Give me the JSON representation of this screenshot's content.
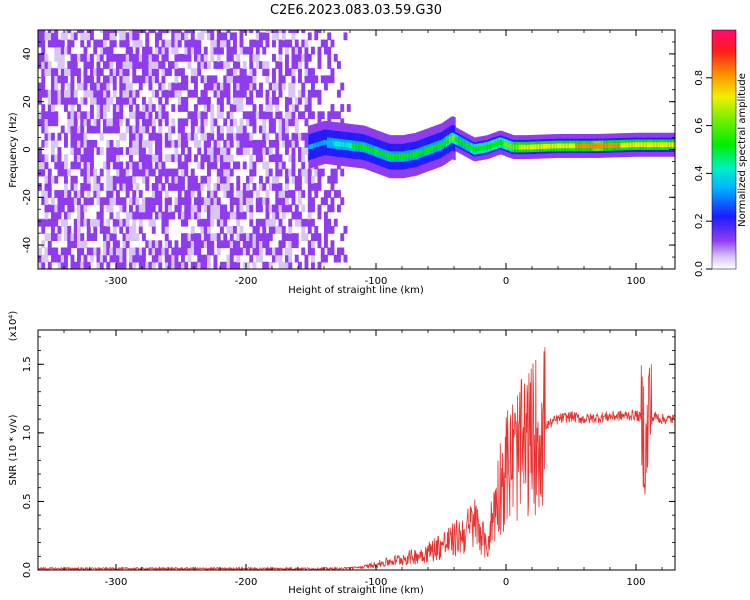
{
  "figure": {
    "title": "C2E6.2023.083.03.59.G30"
  },
  "chart_data": [
    {
      "type": "heatmap",
      "xlabel": "Height of straight line (km)",
      "ylabel": "Frequency (Hz)",
      "xlim": [
        -360,
        130
      ],
      "ylim": [
        -50,
        50
      ],
      "x_ticks": [
        "-300",
        "-200",
        "-100",
        "0",
        "100"
      ],
      "y_ticks": [
        "-40",
        "-20",
        "0",
        "20",
        "40"
      ],
      "colorbar": {
        "label": "Normalized spectral amplitude",
        "range": [
          0,
          1
        ],
        "ticks": [
          "0.0",
          "0.2",
          "0.4",
          "0.6",
          "0.8"
        ]
      },
      "noise_region": {
        "x": [
          -360,
          -120
        ],
        "amplitude": 0.15
      },
      "ridge": [
        {
          "x": -152,
          "y": 1,
          "amp": 0.3
        },
        {
          "x": -140,
          "y": 3,
          "amp": 0.3
        },
        {
          "x": -125,
          "y": 2,
          "amp": 0.4
        },
        {
          "x": -110,
          "y": 1,
          "amp": 0.45
        },
        {
          "x": -100,
          "y": -1,
          "amp": 0.45
        },
        {
          "x": -90,
          "y": -3,
          "amp": 0.45
        },
        {
          "x": -80,
          "y": -3,
          "amp": 0.45
        },
        {
          "x": -70,
          "y": -2,
          "amp": 0.45
        },
        {
          "x": -60,
          "y": 0,
          "amp": 0.45
        },
        {
          "x": -50,
          "y": 2,
          "amp": 0.45
        },
        {
          "x": -42,
          "y": 5,
          "amp": 0.55
        },
        {
          "x": -35,
          "y": 3,
          "amp": 0.45
        },
        {
          "x": -25,
          "y": 0,
          "amp": 0.5
        },
        {
          "x": -15,
          "y": 1,
          "amp": 0.5
        },
        {
          "x": -5,
          "y": 3,
          "amp": 0.5
        },
        {
          "x": 5,
          "y": 1,
          "amp": 0.6
        },
        {
          "x": 15,
          "y": 1,
          "amp": 0.65
        },
        {
          "x": 40,
          "y": 1.5,
          "amp": 0.7
        },
        {
          "x": 70,
          "y": 1.5,
          "amp": 0.75
        },
        {
          "x": 100,
          "y": 2,
          "amp": 0.7
        },
        {
          "x": 130,
          "y": 2,
          "amp": 0.7
        }
      ]
    },
    {
      "type": "line",
      "xlabel": "Height of straight line (km)",
      "ylabel": "SNR (10 * v/v)",
      "y_multiplier": "(x10⁴)",
      "xlim": [
        -360,
        130
      ],
      "ylim": [
        0,
        1.75
      ],
      "x_ticks": [
        "-300",
        "-200",
        "-100",
        "0",
        "100"
      ],
      "y_ticks": [
        "0.0",
        "0.5",
        "1.0",
        "1.5"
      ],
      "color": "#e8322f",
      "series": [
        {
          "x": [
            -360,
            -300,
            -200,
            -130,
            -120,
            -110,
            -100,
            -90,
            -80,
            -70,
            -60,
            -50,
            -40,
            -30,
            -25,
            -20,
            -15,
            -10,
            -5,
            0,
            5,
            10,
            15,
            20,
            25,
            30,
            40,
            50,
            60,
            80,
            100,
            105,
            108,
            110,
            112,
            115,
            120,
            130
          ],
          "y": [
            0.01,
            0.01,
            0.01,
            0.01,
            0.015,
            0.02,
            0.04,
            0.06,
            0.08,
            0.1,
            0.13,
            0.18,
            0.22,
            0.28,
            0.35,
            0.3,
            0.15,
            0.4,
            0.6,
            0.75,
            0.8,
            0.85,
            0.9,
            0.95,
            1.02,
            1.05,
            1.1,
            1.12,
            1.1,
            1.12,
            1.13,
            1.1,
            0.8,
            1.25,
            1.1,
            1.12,
            1.1,
            1.1
          ]
        }
      ]
    }
  ]
}
